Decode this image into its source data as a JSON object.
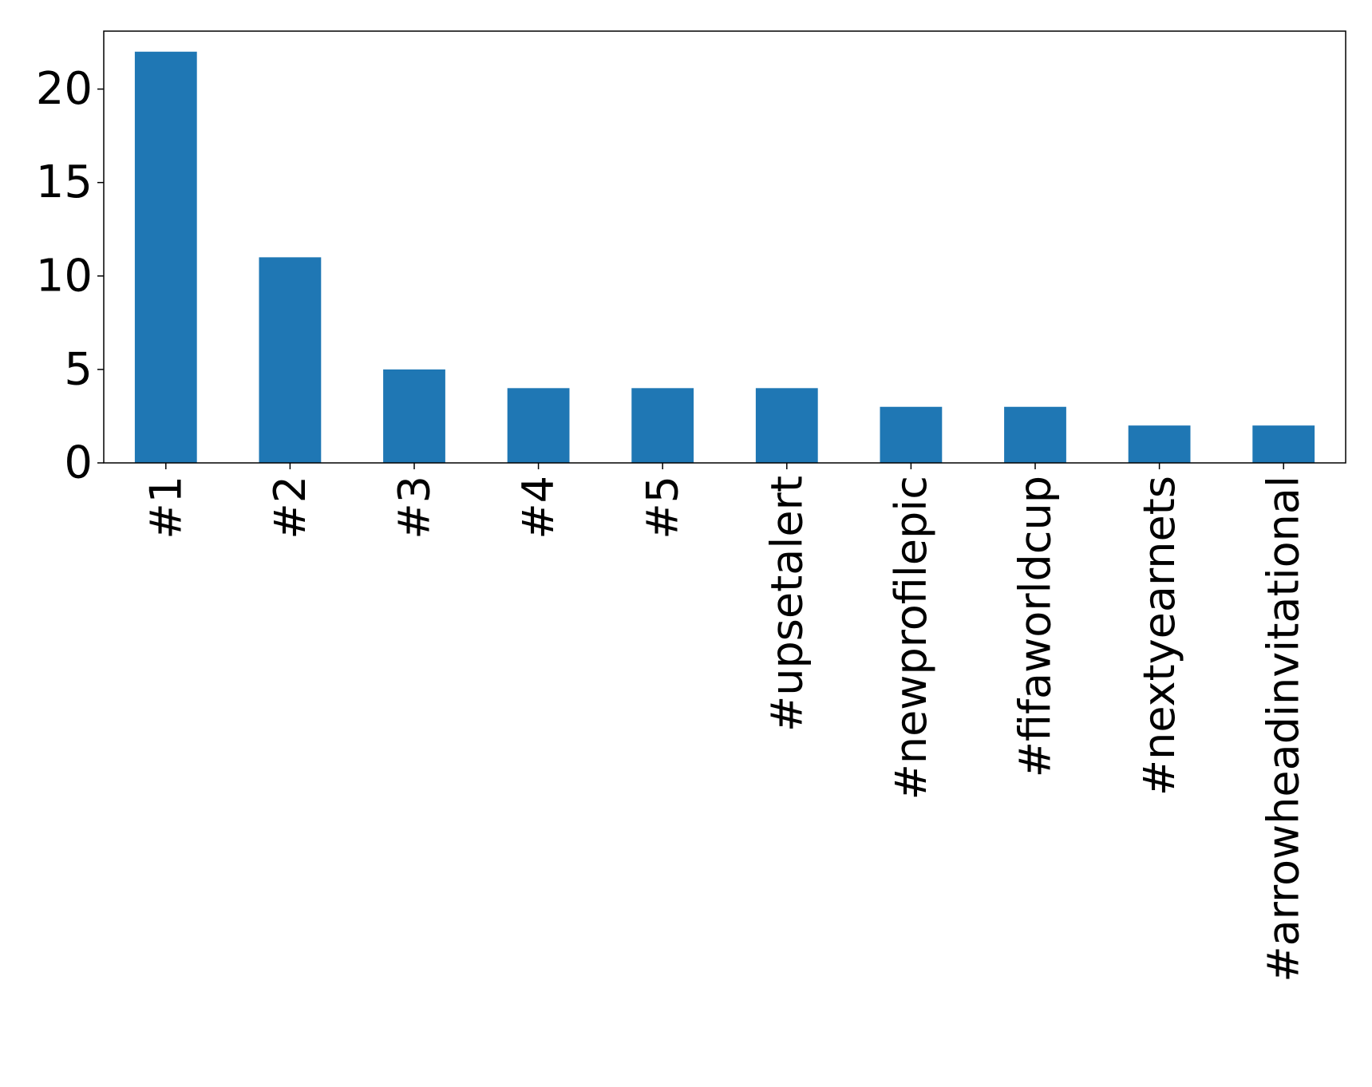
{
  "chart_data": {
    "type": "bar",
    "title": "",
    "xlabel": "",
    "ylabel": "",
    "categories": [
      "#1",
      "#2",
      "#3",
      "#4",
      "#5",
      "#upsetalert",
      "#newprofilepic",
      "#fifaworldcup",
      "#nextyearnets",
      "#arrowheadinvitational"
    ],
    "values": [
      22,
      11,
      5,
      4,
      4,
      4,
      3,
      3,
      2,
      2
    ],
    "ylim": [
      0,
      23.1
    ],
    "yticks": [
      0,
      5,
      10,
      15,
      20
    ],
    "grid": false,
    "legend": "none",
    "bar_color": "#1f77b4"
  }
}
